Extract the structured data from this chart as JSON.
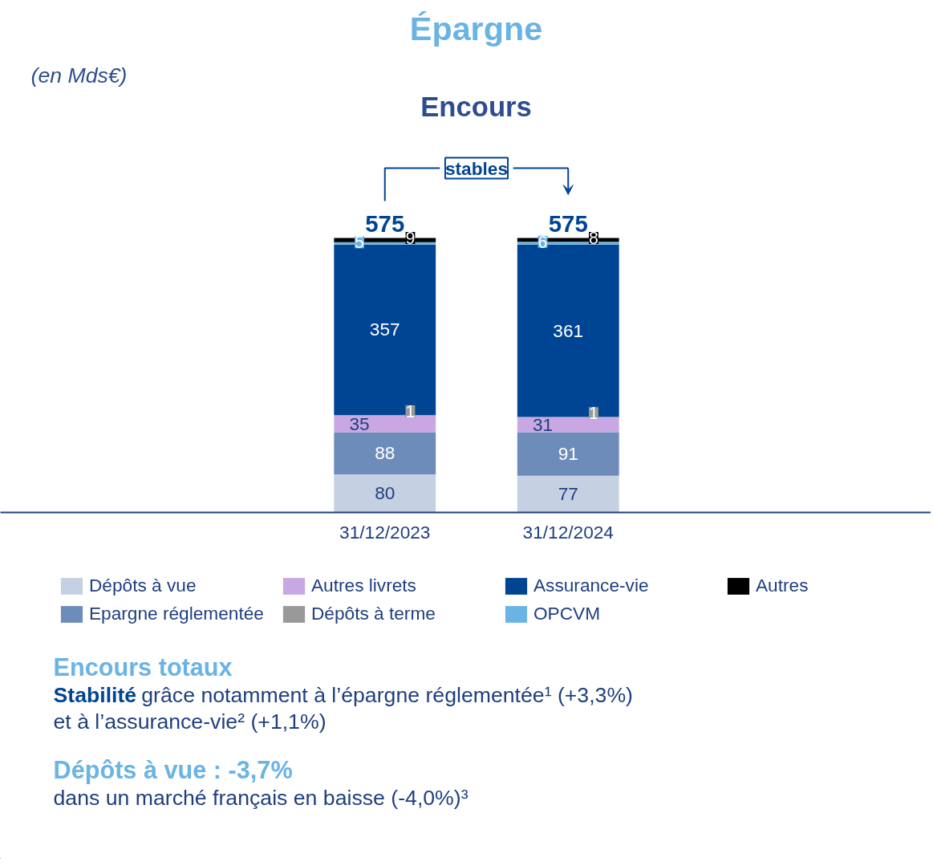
{
  "chart_data": {
    "type": "bar",
    "title": "Épargne",
    "subtitle": "Encours",
    "categories": [
      "31/12/2023",
      "31/12/2024"
    ],
    "stacked": true,
    "series": [
      {
        "name": "Dépôts à vue",
        "color": "#c5d0e3",
        "values": [
          80,
          77
        ]
      },
      {
        "name": "Epargne réglementée",
        "color": "#6e8cb9",
        "values": [
          88,
          91
        ]
      },
      {
        "name": "Autres livrets",
        "color": "#c9a7e3",
        "values": [
          35,
          31
        ]
      },
      {
        "name": "Dépôts à terme",
        "color": "#999999",
        "values": [
          1,
          1
        ]
      },
      {
        "name": "Assurance-vie",
        "color": "#004494",
        "values": [
          357,
          361
        ]
      },
      {
        "name": "OPCVM",
        "color": "#6ab4e3",
        "values": [
          5,
          6
        ]
      },
      {
        "name": "Autres",
        "color": "#000000",
        "values": [
          9,
          8
        ]
      }
    ],
    "totals": [
      "575",
      "575"
    ],
    "data_labels": true,
    "tick_labels": "x",
    "grid": false,
    "legend": "bottom",
    "annotations": [
      "(en Mds€)",
      "stables",
      "Encours totaux",
      "Stabilité grâce notamment à l’épargne réglementée¹ (+3,3%)",
      "et à l’assurance-vie² (+1,1%)",
      "Dépôts à vue : -3,7%",
      "dans un marché français en baisse (-4,0%)³"
    ]
  }
}
